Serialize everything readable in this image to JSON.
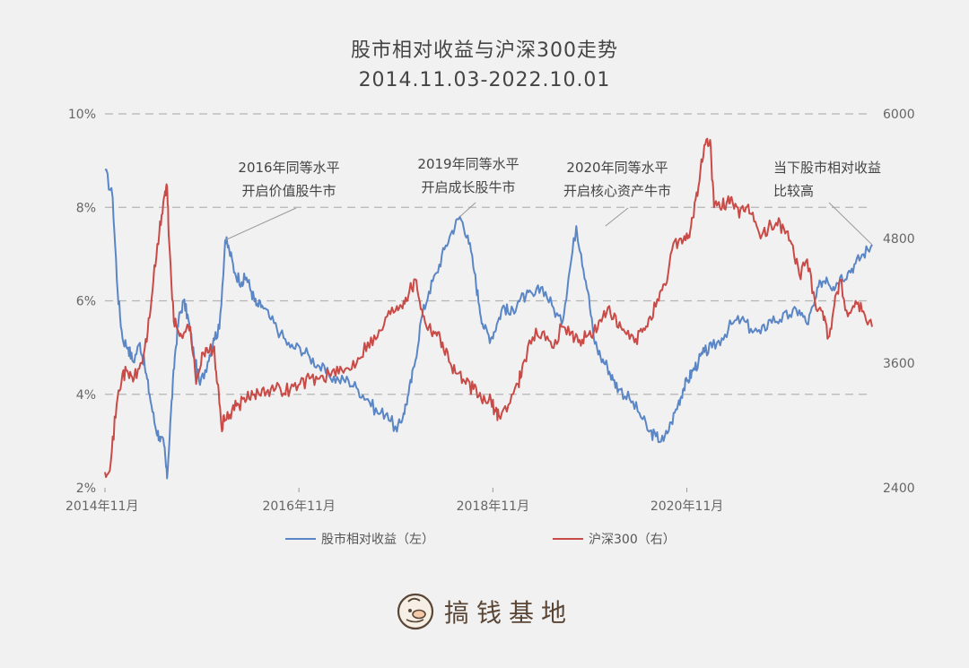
{
  "title": "股市相对收益与沪深300走势",
  "subtitle": "2014.11.03-2022.10.01",
  "brand": {
    "name": "搞钱基地",
    "logo": "duck-face-logo"
  },
  "colors": {
    "relative_return": "#5b86c5",
    "csi300": "#c84b47",
    "grid": "#b5b5b5",
    "text": "#555555"
  },
  "chart_data": {
    "type": "line",
    "x_ticks": [
      "2014年11月",
      "2016年11月",
      "2018年11月",
      "2020年11月"
    ],
    "x_range": [
      2014.84,
      2022.75
    ],
    "y_left": {
      "ticks": [
        "2%",
        "4%",
        "6%",
        "8%",
        "10%"
      ],
      "range": [
        2,
        10
      ],
      "unit": "%"
    },
    "y_right": {
      "ticks": [
        "2400",
        "3600",
        "4800",
        "6000"
      ],
      "range": [
        2400,
        6000
      ]
    },
    "grid": "dashed horizontal",
    "legend_position": "bottom",
    "series": [
      {
        "name": "股市相对收益（左）",
        "axis": "left",
        "x": [
          2014.84,
          2014.92,
          2014.97,
          2015.02,
          2015.08,
          2015.13,
          2015.2,
          2015.25,
          2015.3,
          2015.36,
          2015.4,
          2015.45,
          2015.48,
          2015.52,
          2015.56,
          2015.6,
          2015.65,
          2015.7,
          2015.76,
          2015.82,
          2015.9,
          2015.96,
          2016.02,
          2016.08,
          2016.12,
          2016.18,
          2016.25,
          2016.3,
          2016.35,
          2016.4,
          2016.46,
          2016.55,
          2016.65,
          2016.75,
          2016.85,
          2016.95,
          2017.05,
          2017.15,
          2017.25,
          2017.35,
          2017.45,
          2017.55,
          2017.65,
          2017.75,
          2017.85,
          2017.92,
          2017.97,
          2018.03,
          2018.1,
          2018.18,
          2018.26,
          2018.34,
          2018.42,
          2018.5,
          2018.58,
          2018.65,
          2018.7,
          2018.75,
          2018.82,
          2018.88,
          2018.95,
          2019.02,
          2019.1,
          2019.18,
          2019.26,
          2019.35,
          2019.45,
          2019.55,
          2019.62,
          2019.7,
          2019.75,
          2019.82,
          2019.88,
          2019.95,
          2020.02,
          2020.08,
          2020.15,
          2020.25,
          2020.35,
          2020.45,
          2020.52,
          2020.6,
          2020.68,
          2020.75,
          2020.8,
          2020.85,
          2020.9,
          2020.96,
          2021.02,
          2021.1,
          2021.2,
          2021.3,
          2021.4,
          2021.5,
          2021.6,
          2021.7,
          2021.8,
          2021.9,
          2022.0,
          2022.08,
          2022.15,
          2022.22,
          2022.28,
          2022.35,
          2022.42,
          2022.5,
          2022.58,
          2022.66,
          2022.75
        ],
        "values": [
          8.8,
          8.2,
          6.2,
          5.2,
          5.0,
          4.7,
          5.1,
          4.6,
          4.0,
          3.3,
          3.1,
          2.9,
          2.2,
          3.6,
          4.8,
          5.6,
          6.0,
          5.6,
          4.8,
          4.2,
          4.7,
          5.2,
          5.4,
          7.3,
          7.1,
          6.6,
          6.4,
          6.5,
          6.2,
          5.9,
          5.9,
          5.6,
          5.3,
          5.0,
          5.0,
          4.8,
          4.6,
          4.4,
          4.3,
          4.3,
          4.1,
          3.9,
          3.6,
          3.6,
          3.2,
          3.6,
          4.0,
          4.6,
          5.6,
          6.2,
          6.6,
          7.1,
          7.5,
          7.8,
          7.4,
          6.6,
          5.9,
          5.4,
          5.2,
          5.5,
          5.9,
          5.7,
          6.0,
          6.1,
          6.1,
          6.3,
          5.9,
          5.5,
          6.5,
          7.6,
          7.0,
          6.2,
          5.2,
          4.8,
          4.6,
          4.3,
          4.1,
          3.9,
          3.6,
          3.2,
          3.1,
          3.0,
          3.4,
          3.8,
          4.1,
          4.3,
          4.5,
          4.7,
          4.9,
          5.0,
          5.2,
          5.5,
          5.6,
          5.4,
          5.3,
          5.6,
          5.6,
          5.7,
          5.8,
          5.5,
          5.9,
          6.4,
          6.5,
          6.3,
          6.5,
          6.6,
          6.8,
          7.0,
          7.2
        ]
      },
      {
        "name": "沪深300（右）",
        "axis": "right",
        "x": [
          2014.84,
          2014.9,
          2014.96,
          2015.02,
          2015.08,
          2015.14,
          2015.22,
          2015.28,
          2015.34,
          2015.4,
          2015.45,
          2015.48,
          2015.5,
          2015.55,
          2015.6,
          2015.66,
          2015.72,
          2015.78,
          2015.84,
          2015.9,
          2015.96,
          2016.0,
          2016.04,
          2016.08,
          2016.15,
          2016.22,
          2016.3,
          2016.38,
          2016.46,
          2016.55,
          2016.65,
          2016.75,
          2016.85,
          2016.95,
          2017.05,
          2017.15,
          2017.25,
          2017.35,
          2017.45,
          2017.55,
          2017.65,
          2017.75,
          2017.85,
          2017.92,
          2017.98,
          2018.05,
          2018.12,
          2018.18,
          2018.25,
          2018.32,
          2018.4,
          2018.48,
          2018.56,
          2018.64,
          2018.72,
          2018.8,
          2018.86,
          2018.9,
          2019.0,
          2019.1,
          2019.15,
          2019.25,
          2019.35,
          2019.45,
          2019.55,
          2019.65,
          2019.72,
          2019.8,
          2019.88,
          2019.96,
          2020.04,
          2020.12,
          2020.2,
          2020.3,
          2020.38,
          2020.46,
          2020.55,
          2020.62,
          2020.7,
          2020.78,
          2020.85,
          2020.9,
          2020.96,
          2021.02,
          2021.08,
          2021.12,
          2021.18,
          2021.25,
          2021.3,
          2021.38,
          2021.45,
          2021.52,
          2021.6,
          2021.68,
          2021.76,
          2021.84,
          2021.92,
          2022.0,
          2022.08,
          2022.16,
          2022.24,
          2022.3,
          2022.36,
          2022.42,
          2022.5,
          2022.58,
          2022.66,
          2022.75
        ],
        "values": [
          2550,
          2650,
          3200,
          3500,
          3500,
          3450,
          3600,
          3900,
          4400,
          4850,
          5200,
          5300,
          4800,
          4000,
          3900,
          3900,
          3950,
          3400,
          3700,
          3700,
          3750,
          3400,
          3000,
          3050,
          3150,
          3200,
          3250,
          3300,
          3350,
          3350,
          3350,
          3350,
          3400,
          3450,
          3450,
          3500,
          3500,
          3550,
          3650,
          3800,
          3850,
          4050,
          4150,
          4200,
          4300,
          4400,
          4050,
          3950,
          3900,
          3800,
          3600,
          3500,
          3400,
          3350,
          3250,
          3250,
          3150,
          3100,
          3200,
          3400,
          3600,
          3850,
          3900,
          3750,
          3950,
          3900,
          3800,
          3850,
          3900,
          4000,
          4150,
          3950,
          3900,
          3800,
          3900,
          4050,
          4200,
          4350,
          4750,
          4800,
          4800,
          5000,
          5300,
          5700,
          5750,
          5100,
          5100,
          5150,
          5200,
          5000,
          5100,
          5050,
          4800,
          4900,
          4950,
          4900,
          4750,
          4450,
          4600,
          4200,
          4100,
          3850,
          4150,
          4400,
          4050,
          4200,
          4100,
          3950
        ]
      }
    ],
    "annotations": [
      {
        "lines": [
          "2016年同等水平",
          "开启价值股牛市"
        ],
        "x": 2016.08,
        "y": 7.3
      },
      {
        "lines": [
          "2019年同等水平",
          "开启成长股牛市"
        ],
        "x": 2018.5,
        "y": 7.8
      },
      {
        "lines": [
          "2020年同等水平",
          "开启核心资产牛市"
        ],
        "x": 2020.0,
        "y": 7.6
      },
      {
        "lines": [
          "当下股市相对收益",
          "比较高"
        ],
        "x": 2022.75,
        "y": 7.2
      }
    ]
  },
  "legend": {
    "items": [
      {
        "label": "股市相对收益（左）",
        "color": "#5b86c5"
      },
      {
        "label": "沪深300（右）",
        "color": "#c84b47"
      }
    ]
  }
}
